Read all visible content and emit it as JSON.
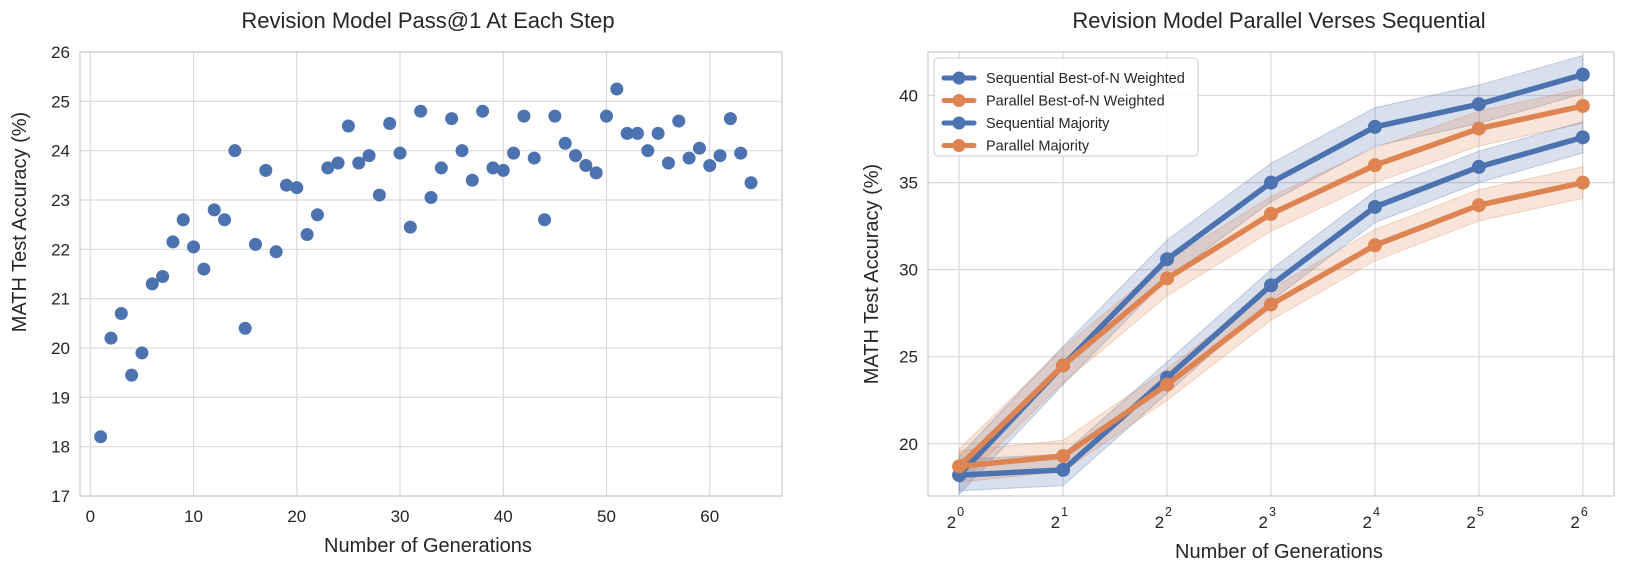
{
  "chart_data": [
    {
      "type": "scatter",
      "title": "Revision Model Pass@1 At Each Step",
      "xlabel": "Number of Generations",
      "ylabel": "MATH Test Accuracy (%)",
      "xlim": [
        -1,
        67
      ],
      "ylim": [
        17,
        26
      ],
      "xticks": [
        0,
        10,
        20,
        30,
        40,
        50,
        60
      ],
      "yticks": [
        17,
        18,
        19,
        20,
        21,
        22,
        23,
        24,
        25,
        26
      ],
      "grid": true,
      "color": "#4c72b0",
      "x": [
        1,
        2,
        3,
        4,
        5,
        6,
        7,
        8,
        9,
        10,
        11,
        12,
        13,
        14,
        15,
        16,
        17,
        18,
        19,
        20,
        21,
        22,
        23,
        24,
        25,
        26,
        27,
        28,
        29,
        30,
        31,
        32,
        33,
        34,
        35,
        36,
        37,
        38,
        39,
        40,
        41,
        42,
        43,
        44,
        45,
        46,
        47,
        48,
        49,
        50,
        51,
        52,
        53,
        54,
        55,
        56,
        57,
        58,
        59,
        60,
        61,
        62,
        63,
        64
      ],
      "y": [
        18.2,
        20.2,
        20.7,
        19.45,
        19.9,
        21.3,
        21.45,
        22.15,
        22.6,
        22.05,
        21.6,
        22.8,
        22.6,
        24.0,
        20.4,
        22.1,
        23.6,
        21.95,
        23.3,
        23.25,
        22.3,
        22.7,
        23.65,
        23.75,
        24.5,
        23.75,
        23.9,
        23.1,
        24.55,
        23.95,
        22.45,
        24.8,
        23.05,
        23.65,
        24.65,
        24.0,
        23.4,
        24.8,
        23.65,
        23.6,
        23.95,
        24.7,
        23.85,
        22.6,
        24.7,
        24.15,
        23.9,
        23.7,
        23.55,
        24.7,
        25.25,
        24.35,
        24.35,
        24.0,
        24.35,
        23.75,
        24.6,
        23.85,
        24.05,
        23.7,
        23.9,
        24.65,
        23.95,
        23.35
      ]
    },
    {
      "type": "line",
      "title": "Revision Model Parallel Verses Sequential",
      "xlabel": "Number of Generations",
      "ylabel": "MATH Test Accuracy (%)",
      "x_scale": "log2",
      "x": [
        1,
        2,
        4,
        8,
        16,
        32,
        64
      ],
      "x_tick_base": "2",
      "x_tick_exponents": [
        "0",
        "1",
        "2",
        "3",
        "4",
        "5",
        "6"
      ],
      "xlim_exp": [
        -0.3,
        6.3
      ],
      "ylim": [
        17.0,
        42.5
      ],
      "yticks": [
        20,
        25,
        30,
        35,
        40
      ],
      "grid": true,
      "legend_position": "top-left",
      "series": [
        {
          "name": "Sequential Best-of-N Weighted",
          "color": "#4c72b0",
          "values": [
            18.2,
            24.5,
            30.6,
            35.0,
            38.2,
            39.5,
            41.2
          ],
          "band": 1.1
        },
        {
          "name": "Parallel Best-of-N Weighted",
          "color": "#dd8452",
          "values": [
            18.7,
            24.5,
            29.5,
            33.2,
            36.0,
            38.1,
            39.4
          ],
          "band": 1.0
        },
        {
          "name": "Sequential Majority",
          "color": "#4c72b0",
          "values": [
            18.2,
            18.5,
            23.8,
            29.1,
            33.6,
            35.9,
            37.6
          ],
          "band": 0.9
        },
        {
          "name": "Parallel Majority",
          "color": "#dd8452",
          "values": [
            18.7,
            19.3,
            23.4,
            28.0,
            31.4,
            33.7,
            35.0
          ],
          "band": 0.9
        }
      ]
    }
  ]
}
